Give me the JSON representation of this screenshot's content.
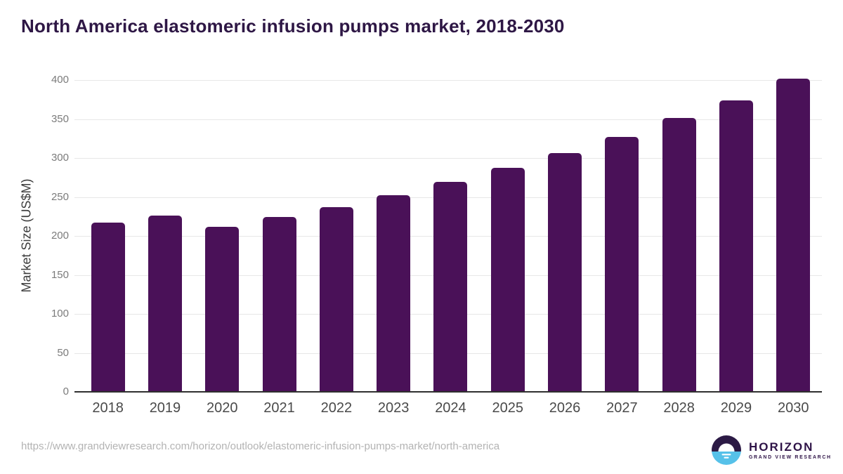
{
  "title": "North America elastomeric infusion pumps market, 2018-2030",
  "footer": {
    "source_url": "https://www.grandviewresearch.com/horizon/outlook/elastomeric-infusion-pumps-market/north-america"
  },
  "logo": {
    "name": "HORIZON",
    "subtitle": "GRAND VIEW RESEARCH"
  },
  "colors": {
    "bar": "#4a1158",
    "title": "#2e1745",
    "gridline": "#e7e7e7",
    "baseline": "#2f2f2f",
    "y_tick_label": "#7b7b7b",
    "x_tick_label": "#4a4a4a",
    "footer_text": "#b3b3b3",
    "logo_purple": "#2c1a45",
    "logo_blue": "#56c1e9"
  },
  "chart_data": {
    "type": "bar",
    "title": "North America elastomeric infusion pumps market, 2018-2030",
    "categories": [
      "2018",
      "2019",
      "2020",
      "2021",
      "2022",
      "2023",
      "2024",
      "2025",
      "2026",
      "2027",
      "2028",
      "2029",
      "2030"
    ],
    "values": [
      217,
      226,
      212,
      224,
      237,
      252,
      269,
      287,
      306,
      327,
      351,
      374,
      402
    ],
    "xlabel": "",
    "ylabel": "Market Size (US$M)",
    "ylim": [
      0,
      400
    ],
    "yticks": [
      0,
      50,
      100,
      150,
      200,
      250,
      300,
      350,
      400
    ],
    "grid": true,
    "legend": "none",
    "bar_color": "#4a1158"
  }
}
